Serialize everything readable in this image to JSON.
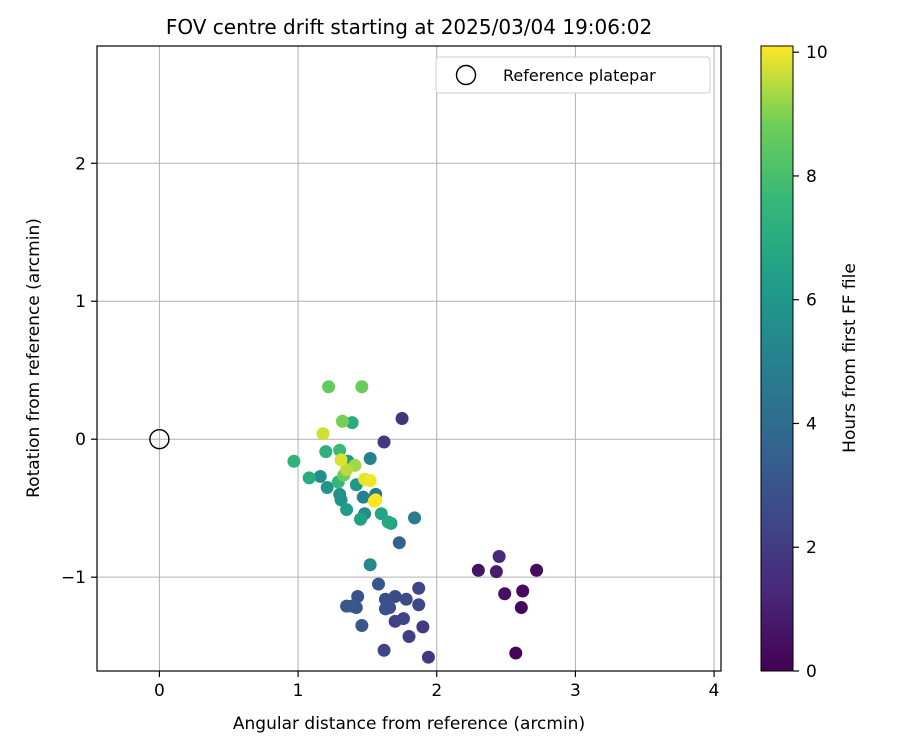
{
  "chart_data": {
    "type": "scatter",
    "title": "FOV centre drift starting at 2025/03/04 19:06:02",
    "xlabel": "Angular distance from reference (arcmin)",
    "ylabel": "Rotation from reference (arcmin)",
    "xlim": [
      -0.45,
      4.05
    ],
    "ylim": [
      -1.68,
      2.85
    ],
    "xticks": [
      0,
      1,
      2,
      3,
      4
    ],
    "yticks": [
      -1,
      0,
      1,
      2
    ],
    "grid": true,
    "legend": {
      "label": "Reference platepar",
      "placement": "top-right"
    },
    "reference_point": {
      "x": 0,
      "y": 0
    },
    "colorbar": {
      "label": "Hours from first FF file",
      "range": [
        0,
        10.1
      ],
      "ticks": [
        0,
        2,
        4,
        6,
        8,
        10
      ],
      "colormap": "viridis"
    },
    "points": [
      {
        "x": 2.57,
        "y": -1.55,
        "t": 0.1
      },
      {
        "x": 2.61,
        "y": -1.22,
        "t": 0.2
      },
      {
        "x": 2.62,
        "y": -1.1,
        "t": 0.3
      },
      {
        "x": 2.72,
        "y": -0.95,
        "t": 0.35
      },
      {
        "x": 2.49,
        "y": -1.12,
        "t": 0.5
      },
      {
        "x": 2.3,
        "y": -0.95,
        "t": 0.6
      },
      {
        "x": 2.43,
        "y": -0.96,
        "t": 0.9
      },
      {
        "x": 2.45,
        "y": -0.85,
        "t": 1.3
      },
      {
        "x": 1.75,
        "y": 0.15,
        "t": 1.7
      },
      {
        "x": 1.94,
        "y": -1.58,
        "t": 1.8
      },
      {
        "x": 1.62,
        "y": -0.02,
        "t": 1.9
      },
      {
        "x": 1.9,
        "y": -1.36,
        "t": 2.0
      },
      {
        "x": 1.8,
        "y": -1.43,
        "t": 2.1
      },
      {
        "x": 1.7,
        "y": -1.32,
        "t": 2.2
      },
      {
        "x": 1.76,
        "y": -1.3,
        "t": 2.3
      },
      {
        "x": 1.62,
        "y": -1.53,
        "t": 2.4
      },
      {
        "x": 1.87,
        "y": -1.08,
        "t": 2.4
      },
      {
        "x": 1.87,
        "y": -1.2,
        "t": 2.5
      },
      {
        "x": 1.78,
        "y": -1.16,
        "t": 2.6
      },
      {
        "x": 1.7,
        "y": -1.14,
        "t": 2.6
      },
      {
        "x": 1.66,
        "y": -1.22,
        "t": 2.7
      },
      {
        "x": 1.63,
        "y": -1.16,
        "t": 2.8
      },
      {
        "x": 1.63,
        "y": -1.23,
        "t": 2.9
      },
      {
        "x": 1.58,
        "y": -1.05,
        "t": 3.0
      },
      {
        "x": 1.43,
        "y": -1.14,
        "t": 2.9
      },
      {
        "x": 1.35,
        "y": -1.21,
        "t": 3.1
      },
      {
        "x": 1.42,
        "y": -1.22,
        "t": 3.0
      },
      {
        "x": 1.39,
        "y": -1.21,
        "t": 3.2
      },
      {
        "x": 1.46,
        "y": -1.35,
        "t": 3.1
      },
      {
        "x": 1.73,
        "y": -0.75,
        "t": 3.6
      },
      {
        "x": 1.84,
        "y": -0.57,
        "t": 4.7
      },
      {
        "x": 1.56,
        "y": -0.4,
        "t": 4.5
      },
      {
        "x": 1.52,
        "y": -0.14,
        "t": 5.1
      },
      {
        "x": 1.52,
        "y": -0.91,
        "t": 5.3
      },
      {
        "x": 1.47,
        "y": -0.42,
        "t": 5.0
      },
      {
        "x": 1.48,
        "y": -0.54,
        "t": 5.5
      },
      {
        "x": 1.3,
        "y": -0.4,
        "t": 5.7
      },
      {
        "x": 1.31,
        "y": -0.44,
        "t": 5.8
      },
      {
        "x": 1.16,
        "y": -0.27,
        "t": 5.6
      },
      {
        "x": 1.21,
        "y": -0.35,
        "t": 6.0
      },
      {
        "x": 1.35,
        "y": -0.51,
        "t": 6.2
      },
      {
        "x": 1.36,
        "y": -0.16,
        "t": 6.0
      },
      {
        "x": 1.42,
        "y": -0.33,
        "t": 6.1
      },
      {
        "x": 1.45,
        "y": -0.58,
        "t": 6.4
      },
      {
        "x": 1.6,
        "y": -0.54,
        "t": 6.6
      },
      {
        "x": 1.67,
        "y": -0.61,
        "t": 6.5
      },
      {
        "x": 1.65,
        "y": -0.6,
        "t": 6.8
      },
      {
        "x": 1.39,
        "y": 0.12,
        "t": 7.0
      },
      {
        "x": 1.08,
        "y": -0.28,
        "t": 7.0
      },
      {
        "x": 1.2,
        "y": -0.09,
        "t": 7.2
      },
      {
        "x": 0.97,
        "y": -0.16,
        "t": 7.3
      },
      {
        "x": 1.29,
        "y": -0.31,
        "t": 7.5
      },
      {
        "x": 1.3,
        "y": -0.08,
        "t": 7.7
      },
      {
        "x": 1.22,
        "y": 0.38,
        "t": 8.6
      },
      {
        "x": 1.46,
        "y": 0.38,
        "t": 8.7
      },
      {
        "x": 1.32,
        "y": 0.13,
        "t": 8.9
      },
      {
        "x": 1.33,
        "y": -0.26,
        "t": 8.8
      },
      {
        "x": 1.41,
        "y": -0.19,
        "t": 9.3
      },
      {
        "x": 1.35,
        "y": -0.22,
        "t": 9.5
      },
      {
        "x": 1.18,
        "y": 0.04,
        "t": 9.7
      },
      {
        "x": 1.31,
        "y": -0.15,
        "t": 9.8
      },
      {
        "x": 1.48,
        "y": -0.29,
        "t": 9.9
      },
      {
        "x": 1.52,
        "y": -0.3,
        "t": 10.0
      },
      {
        "x": 1.55,
        "y": -0.45,
        "t": 10.0
      },
      {
        "x": 1.56,
        "y": -0.44,
        "t": 10.1
      }
    ]
  }
}
